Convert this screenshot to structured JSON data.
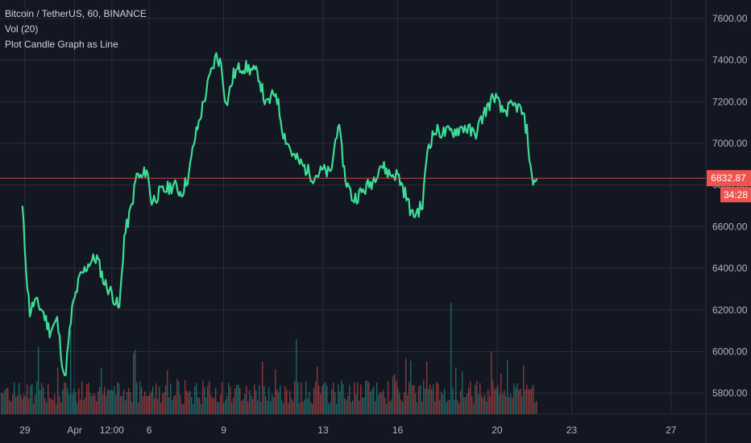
{
  "legend": {
    "symbol": "Bitcoin / TetherUS, 60, BINANCE",
    "volume": "Vol (20)",
    "study": "Plot Candle Graph as Line"
  },
  "colors": {
    "background": "#131722",
    "grid": "#2a2e39",
    "line": "#3ddc97",
    "volume_up": "#26a69a",
    "volume_down": "#ef5350",
    "price_line": "#ef5350",
    "axis_text": "#b2b5be"
  },
  "chart_data": {
    "type": "line",
    "ylim": [
      5700,
      7650
    ],
    "yticks": [
      5800,
      6000,
      6200,
      6400,
      6600,
      6800,
      7000,
      7200,
      7400,
      7600
    ],
    "ytick_labels": [
      "5800.00",
      "6000.00",
      "6200.00",
      "6400.00",
      "6600.00",
      "6800.00",
      "7000.00",
      "7200.00",
      "7400.00",
      "7600.00"
    ],
    "xlim": [
      28.9,
      27.9
    ],
    "xticks": [
      {
        "x": 29.0,
        "label": "29"
      },
      {
        "x": 31.0,
        "label": "Apr"
      },
      {
        "x": 32.5,
        "label": "12:00"
      },
      {
        "x": 34.0,
        "label": "6"
      },
      {
        "x": 37.0,
        "label": "9"
      },
      {
        "x": 41.0,
        "label": "13"
      },
      {
        "x": 44.0,
        "label": "16"
      },
      {
        "x": 48.0,
        "label": "20"
      },
      {
        "x": 51.0,
        "label": "23"
      },
      {
        "x": 55.0,
        "label": "27"
      }
    ],
    "price_path": [
      [
        28.9,
        6690
      ],
      [
        29.1,
        6320
      ],
      [
        29.2,
        6190
      ],
      [
        29.4,
        6240
      ],
      [
        29.7,
        6200
      ],
      [
        30.0,
        6100
      ],
      [
        30.3,
        6150
      ],
      [
        30.6,
        5860
      ],
      [
        30.9,
        6200
      ],
      [
        31.2,
        6350
      ],
      [
        31.6,
        6430
      ],
      [
        31.9,
        6450
      ],
      [
        32.2,
        6330
      ],
      [
        32.5,
        6280
      ],
      [
        32.8,
        6200
      ],
      [
        33.0,
        6550
      ],
      [
        33.3,
        6700
      ],
      [
        33.5,
        6850
      ],
      [
        33.7,
        6830
      ],
      [
        33.9,
        6880
      ],
      [
        34.1,
        6720
      ],
      [
        34.4,
        6760
      ],
      [
        34.7,
        6780
      ],
      [
        35.0,
        6800
      ],
      [
        35.3,
        6760
      ],
      [
        35.6,
        6850
      ],
      [
        35.8,
        7000
      ],
      [
        36.1,
        7150
      ],
      [
        36.4,
        7300
      ],
      [
        36.7,
        7420
      ],
      [
        36.9,
        7380
      ],
      [
        37.1,
        7180
      ],
      [
        37.4,
        7330
      ],
      [
        37.7,
        7370
      ],
      [
        38.0,
        7360
      ],
      [
        38.4,
        7330
      ],
      [
        38.7,
        7180
      ],
      [
        39.1,
        7250
      ],
      [
        39.4,
        7050
      ],
      [
        39.8,
        6940
      ],
      [
        40.2,
        6890
      ],
      [
        40.6,
        6840
      ],
      [
        41.0,
        6870
      ],
      [
        41.3,
        6850
      ],
      [
        41.6,
        7100
      ],
      [
        41.9,
        6830
      ],
      [
        42.2,
        6730
      ],
      [
        42.6,
        6770
      ],
      [
        43.0,
        6820
      ],
      [
        43.3,
        6900
      ],
      [
        43.7,
        6850
      ],
      [
        44.0,
        6850
      ],
      [
        44.3,
        6760
      ],
      [
        44.6,
        6650
      ],
      [
        45.0,
        6700
      ],
      [
        45.2,
        6980
      ],
      [
        45.5,
        7060
      ],
      [
        45.9,
        7050
      ],
      [
        46.3,
        7060
      ],
      [
        46.7,
        7080
      ],
      [
        47.1,
        7040
      ],
      [
        47.5,
        7150
      ],
      [
        47.9,
        7230
      ],
      [
        48.2,
        7150
      ],
      [
        48.5,
        7170
      ],
      [
        48.8,
        7180
      ],
      [
        49.0,
        7150
      ],
      [
        49.2,
        7060
      ],
      [
        49.4,
        6820
      ],
      [
        49.6,
        6830
      ]
    ],
    "volume_seed": 7,
    "last_price": {
      "value": 6832.87,
      "label": "6832.87",
      "countdown": "34:28"
    }
  }
}
